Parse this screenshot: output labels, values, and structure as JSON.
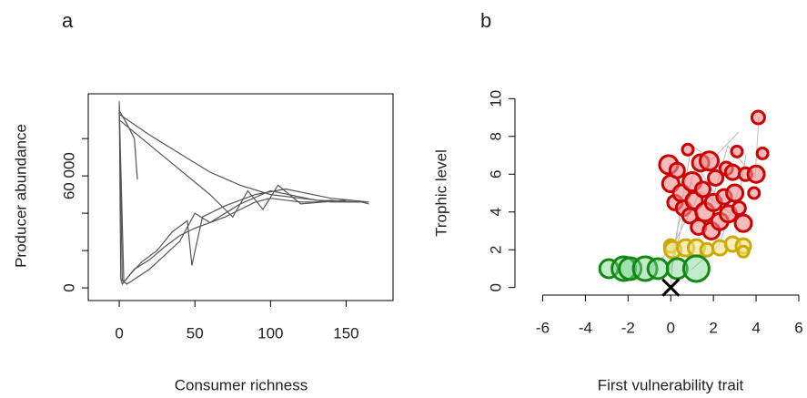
{
  "chart_data": [
    {
      "type": "line",
      "title": "a",
      "x_label": "Consumer richness",
      "y_label": "Producer abundance",
      "xlim": [
        -20.5,
        181
      ],
      "ylim": [
        -6800,
        104000
      ],
      "xticks": [
        0,
        50,
        100,
        150
      ],
      "yticks": [
        0,
        {
          "value": 20000,
          "label": null
        },
        {
          "value": 40000,
          "label": null
        },
        {
          "value": 60000,
          "label": "60 000"
        },
        {
          "value": 80000,
          "label": null
        }
      ],
      "series": [
        {
          "color": "#555555",
          "x": [
            0,
            1,
            2,
            3,
            5,
            10,
            20,
            30,
            40,
            50,
            60,
            70,
            80,
            90,
            100,
            110,
            120,
            130,
            140,
            150,
            160,
            165
          ],
          "values": [
            100000,
            5000,
            2000,
            3000,
            5000,
            10000,
            15000,
            22000,
            28000,
            32000,
            35000,
            38000,
            42000,
            46000,
            48000,
            47000,
            46000,
            46000,
            47000,
            46000,
            46000,
            45000
          ]
        },
        {
          "color": "#555555",
          "x": [
            0,
            5,
            10,
            12
          ],
          "values": [
            95000,
            88000,
            80000,
            58000
          ]
        },
        {
          "color": "#555555",
          "x": [
            0,
            20,
            40,
            60,
            80,
            100,
            120,
            140,
            165
          ],
          "values": [
            93000,
            82000,
            72000,
            62000,
            55000,
            50000,
            48000,
            46000,
            46000
          ]
        },
        {
          "color": "#555555",
          "x": [
            0,
            2,
            5,
            20,
            40,
            50,
            60,
            80,
            100,
            130,
            160
          ],
          "values": [
            98000,
            4000,
            2000,
            10000,
            25000,
            40000,
            35000,
            45000,
            52000,
            47000,
            46000
          ]
        },
        {
          "color": "#555555",
          "x": [
            0,
            3,
            8,
            15,
            25,
            35,
            45,
            48,
            55,
            70,
            90,
            110,
            140,
            165
          ],
          "values": [
            96000,
            3000,
            8000,
            14000,
            20000,
            30000,
            36000,
            12000,
            38000,
            44000,
            50000,
            53000,
            48000,
            46000
          ]
        },
        {
          "color": "#555555",
          "x": [
            0,
            30,
            60,
            75,
            85,
            95,
            105,
            120,
            150
          ],
          "values": [
            90000,
            70000,
            50000,
            38000,
            52000,
            42000,
            55000,
            45000,
            47000
          ]
        }
      ]
    },
    {
      "type": "scatter",
      "title": "b",
      "x_label": "First vulnerability trait",
      "y_label": "Trophic level",
      "xlim": [
        -7.3,
        6
      ],
      "ylim": [
        -0.4,
        10.4
      ],
      "xticks": [
        -6,
        -4,
        -2,
        0,
        2,
        4,
        6
      ],
      "yticks": [
        0,
        2,
        4,
        6,
        8,
        10
      ],
      "series": [
        {
          "color": "#cc0000",
          "fill": "rgba(240,140,140,0.6)",
          "x": [
            -0.1,
            0,
            0.2,
            0.3,
            0.5,
            0.6,
            0.8,
            0.9,
            1.0,
            1.1,
            1.3,
            1.4,
            1.5,
            1.6,
            1.8,
            1.9,
            2.0,
            2.1,
            2.3,
            2.5,
            2.6,
            2.7,
            2.9,
            3.0,
            3.1,
            3.2,
            3.4,
            3.5,
            4.0,
            4.1,
            4.3,
            3.9
          ],
          "values": [
            6.5,
            5.5,
            4.5,
            6.2,
            5.0,
            4.2,
            7.3,
            3.8,
            5.6,
            4.6,
            3.2,
            6.6,
            5.2,
            4.0,
            6.7,
            3.0,
            4.5,
            5.8,
            3.5,
            4.8,
            6.3,
            3.9,
            6.1,
            5.0,
            7.2,
            4.2,
            3.4,
            6.0,
            6.0,
            9.0,
            7.1,
            5.0
          ],
          "sizes": [
            10,
            9,
            8,
            8,
            9,
            8,
            6,
            8,
            10,
            9,
            8,
            9,
            8,
            10,
            10,
            9,
            9,
            8,
            9,
            8,
            7,
            9,
            8,
            9,
            6,
            7,
            9,
            7,
            9,
            7,
            6,
            6
          ]
        },
        {
          "color": "#ccaa00",
          "fill": "rgba(240,225,140,0.6)",
          "x": [
            0,
            0.1,
            0.7,
            1.2,
            1.7,
            2.3,
            2.9,
            3.4,
            3.4
          ],
          "values": [
            2.2,
            2.0,
            2.1,
            2.1,
            2.0,
            2.1,
            2.3,
            2.2,
            1.9
          ],
          "sizes": [
            7,
            9,
            9,
            9,
            7,
            8,
            8,
            8,
            6
          ]
        },
        {
          "color": "#118811",
          "fill": "rgba(120,210,140,0.45)",
          "x": [
            -2.9,
            -2.2,
            -1.9,
            -1.2,
            -0.6,
            0.3,
            1.2
          ],
          "values": [
            1.0,
            1.0,
            1.0,
            1.0,
            1.0,
            1.0,
            1.0
          ],
          "sizes": [
            10,
            13,
            12,
            13,
            11,
            11,
            14
          ]
        },
        {
          "color": "#000000",
          "marker": "x",
          "x": [
            0
          ],
          "values": [
            0
          ]
        }
      ]
    }
  ]
}
